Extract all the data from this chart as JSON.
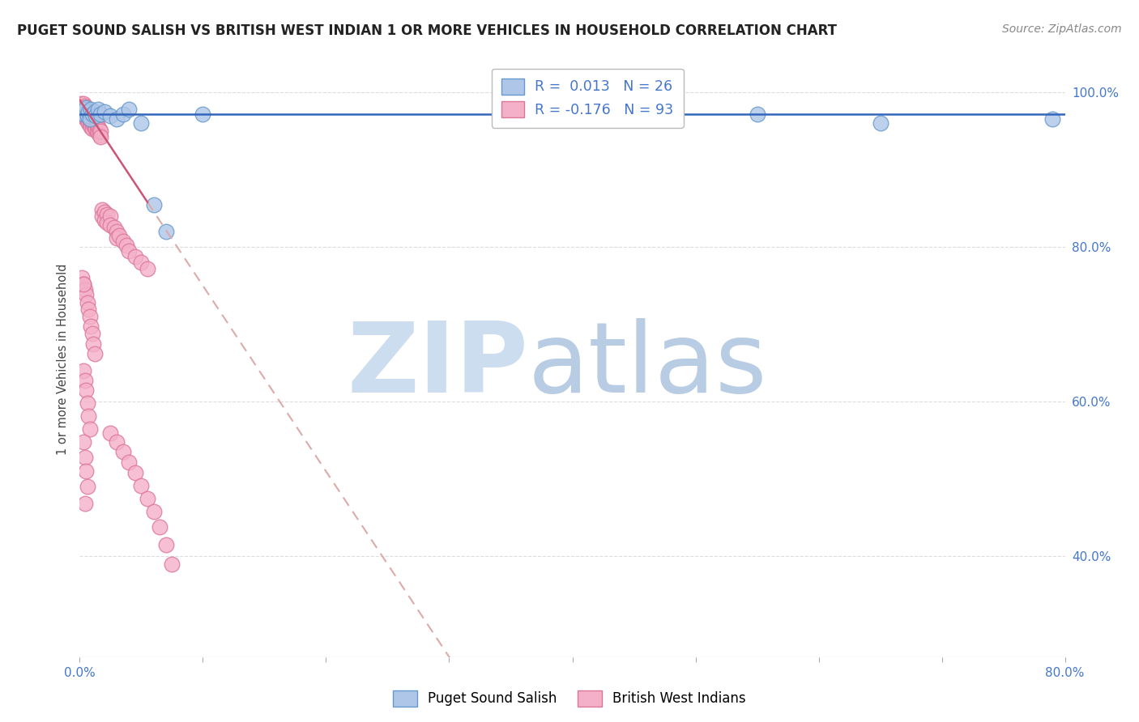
{
  "title": "PUGET SOUND SALISH VS BRITISH WEST INDIAN 1 OR MORE VEHICLES IN HOUSEHOLD CORRELATION CHART",
  "source": "Source: ZipAtlas.com",
  "ylabel_label": "1 or more Vehicles in Household",
  "xlim": [
    0.0,
    0.8
  ],
  "ylim": [
    0.27,
    1.04
  ],
  "scatter_blue_face": "#aec6e8",
  "scatter_blue_edge": "#6699cc",
  "scatter_pink_face": "#f4b0c8",
  "scatter_pink_edge": "#dd7799",
  "trend_blue_color": "#3366bb",
  "trend_pink_solid": "#cc5577",
  "trend_pink_dash": "#ddaaaa",
  "watermark_zip_color": "#ccddf0",
  "watermark_atlas_color": "#b8cce4",
  "axis_label_color": "#4477cc",
  "title_color": "#222222",
  "source_color": "#888888",
  "grid_color": "#dddddd",
  "background_color": "#ffffff",
  "legend_inside_r1": "R = ",
  "legend_inside_v1": " 0.013",
  "legend_inside_n1": "  N = ",
  "legend_inside_nv1": "26",
  "legend_inside_r2": "R = ",
  "legend_inside_v2": "-0.176",
  "legend_inside_n2": "  N = ",
  "legend_inside_nv2": "93",
  "legend_bottom_label1": "Puget Sound Salish",
  "legend_bottom_label2": "British West Indians",
  "xtick_vals": [
    0.0,
    0.1,
    0.2,
    0.3,
    0.4,
    0.5,
    0.6,
    0.7,
    0.8
  ],
  "xtick_labels": [
    "0.0%",
    "",
    "",
    "",
    "",
    "",
    "",
    "",
    "80.0%"
  ],
  "ytick_vals": [
    0.4,
    0.6,
    0.8,
    1.0
  ],
  "ytick_labels": [
    "40.0%",
    "60.0%",
    "80.0%",
    "100.0%"
  ],
  "blue_x": [
    0.002,
    0.003,
    0.004,
    0.005,
    0.006,
    0.007,
    0.008,
    0.009,
    0.01,
    0.012,
    0.013,
    0.015,
    0.017,
    0.02,
    0.025,
    0.03,
    0.035,
    0.04,
    0.05,
    0.06,
    0.07,
    0.1,
    0.42,
    0.55,
    0.65,
    0.79
  ],
  "blue_y": [
    0.975,
    0.972,
    0.978,
    0.98,
    0.97,
    0.975,
    0.965,
    0.978,
    0.972,
    0.975,
    0.97,
    0.978,
    0.972,
    0.975,
    0.97,
    0.965,
    0.972,
    0.978,
    0.96,
    0.855,
    0.82,
    0.972,
    0.968,
    0.972,
    0.96,
    0.965
  ],
  "pink_x": [
    0.001,
    0.002,
    0.002,
    0.003,
    0.003,
    0.003,
    0.004,
    0.004,
    0.004,
    0.005,
    0.005,
    0.005,
    0.006,
    0.006,
    0.006,
    0.007,
    0.007,
    0.007,
    0.008,
    0.008,
    0.008,
    0.009,
    0.009,
    0.009,
    0.01,
    0.01,
    0.01,
    0.011,
    0.011,
    0.012,
    0.012,
    0.013,
    0.013,
    0.014,
    0.014,
    0.015,
    0.015,
    0.016,
    0.016,
    0.017,
    0.017,
    0.018,
    0.018,
    0.02,
    0.02,
    0.022,
    0.022,
    0.025,
    0.025,
    0.028,
    0.03,
    0.03,
    0.032,
    0.035,
    0.038,
    0.04,
    0.045,
    0.05,
    0.055,
    0.002,
    0.003,
    0.004,
    0.005,
    0.006,
    0.007,
    0.008,
    0.009,
    0.01,
    0.011,
    0.012,
    0.003,
    0.004,
    0.005,
    0.006,
    0.007,
    0.008,
    0.003,
    0.004,
    0.005,
    0.006,
    0.003,
    0.004,
    0.025,
    0.03,
    0.035,
    0.04,
    0.045,
    0.05,
    0.055,
    0.06,
    0.065,
    0.07,
    0.075
  ],
  "pink_y": [
    0.985,
    0.98,
    0.975,
    0.985,
    0.978,
    0.97,
    0.982,
    0.975,
    0.968,
    0.98,
    0.972,
    0.965,
    0.978,
    0.97,
    0.963,
    0.975,
    0.968,
    0.96,
    0.972,
    0.965,
    0.958,
    0.97,
    0.962,
    0.955,
    0.968,
    0.96,
    0.953,
    0.965,
    0.958,
    0.962,
    0.955,
    0.96,
    0.952,
    0.958,
    0.95,
    0.955,
    0.948,
    0.952,
    0.945,
    0.95,
    0.942,
    0.848,
    0.84,
    0.845,
    0.835,
    0.842,
    0.832,
    0.84,
    0.828,
    0.825,
    0.82,
    0.812,
    0.815,
    0.808,
    0.802,
    0.795,
    0.788,
    0.78,
    0.772,
    0.76,
    0.752,
    0.745,
    0.738,
    0.728,
    0.72,
    0.71,
    0.698,
    0.688,
    0.675,
    0.662,
    0.64,
    0.628,
    0.615,
    0.598,
    0.582,
    0.565,
    0.548,
    0.528,
    0.51,
    0.49,
    0.752,
    0.468,
    0.56,
    0.548,
    0.535,
    0.522,
    0.508,
    0.492,
    0.475,
    0.458,
    0.438,
    0.415,
    0.39
  ],
  "blue_trend_y_intercept": 0.972,
  "blue_trend_slope": 0.0,
  "pink_trend_x0": 0.0,
  "pink_trend_y0": 0.99,
  "pink_trend_x1": 0.3,
  "pink_trend_y1": 0.27
}
